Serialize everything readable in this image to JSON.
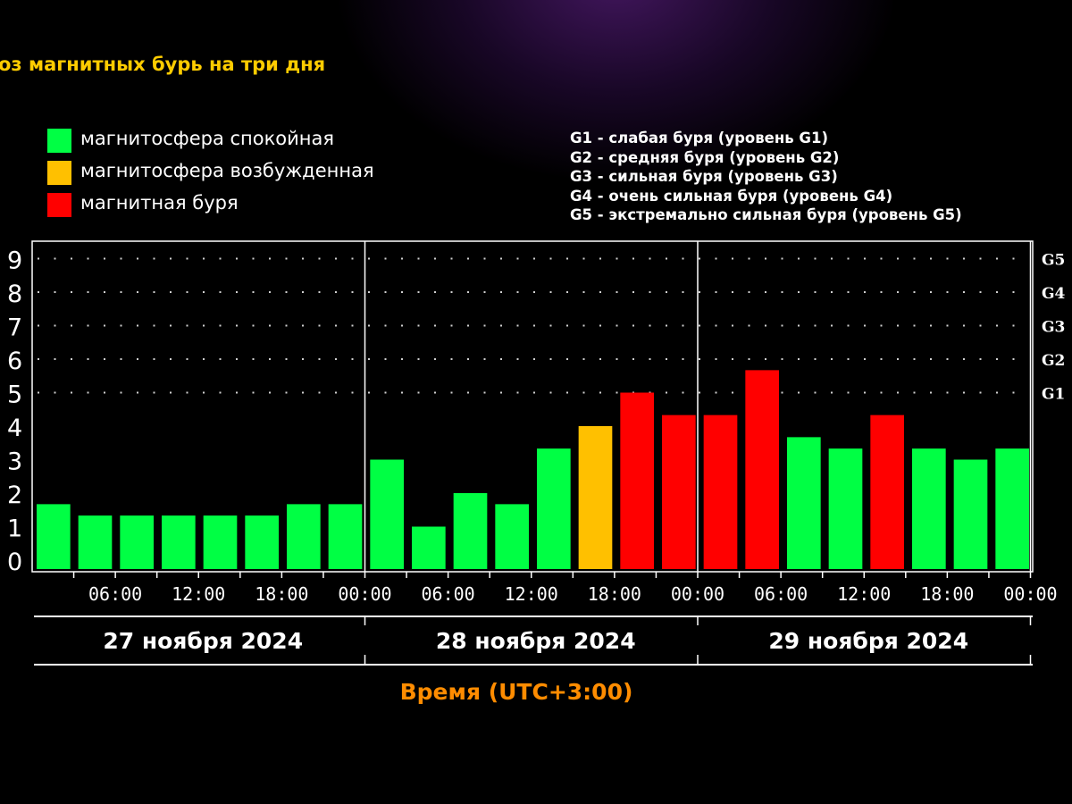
{
  "header": {
    "title": "оз магнитных бурь на три дня"
  },
  "legend": [
    {
      "label": "магнитосфера спокойная",
      "color": "#00ff44"
    },
    {
      "label": "магнитосфера возбужденная",
      "color": "#ffc000"
    },
    {
      "label": "магнитная буря",
      "color": "#ff0000"
    }
  ],
  "storm_scale": [
    "G1 - слабая буря (уровень G1)",
    "G2 - средняя буря (уровень G2)",
    "G3 - сильная буря (уровень G3)",
    "G4 - очень сильная буря (уровень G4)",
    "G5 - экстремально сильная буря (уровень G5)"
  ],
  "chart_data": {
    "type": "bar",
    "xlabel": "Время (UTC+3:00)",
    "ylim": [
      0,
      9
    ],
    "y_ticks": [
      "0",
      "1",
      "2",
      "3",
      "4",
      "5",
      "6",
      "7",
      "8",
      "9"
    ],
    "right_ticks": [
      {
        "label": "G1",
        "value": 5
      },
      {
        "label": "G2",
        "value": 6
      },
      {
        "label": "G3",
        "value": 7
      },
      {
        "label": "G4",
        "value": 8
      },
      {
        "label": "G5",
        "value": 9
      }
    ],
    "x_ticks": [
      "06:00",
      "12:00",
      "18:00",
      "00:00",
      "06:00",
      "12:00",
      "18:00",
      "00:00",
      "06:00",
      "12:00",
      "18:00",
      "00:00",
      "06:00",
      "12:00",
      "18:00",
      "00:00"
    ],
    "days": [
      "27 ноября 2024",
      "28 ноября 2024",
      "29 ноября 2024"
    ],
    "grid": true,
    "values": [
      1.67,
      1.33,
      1.33,
      1.33,
      1.33,
      1.33,
      1.67,
      1.67,
      3.0,
      1.0,
      2.0,
      1.67,
      3.33,
      4.0,
      5.0,
      4.33,
      4.33,
      5.67,
      3.67,
      3.33,
      4.33,
      3.33,
      3.0,
      3.33
    ],
    "levels": [
      "quiet",
      "quiet",
      "quiet",
      "quiet",
      "quiet",
      "quiet",
      "quiet",
      "quiet",
      "quiet",
      "quiet",
      "quiet",
      "quiet",
      "quiet",
      "active",
      "storm",
      "storm",
      "storm",
      "storm",
      "quiet",
      "quiet",
      "storm",
      "quiet",
      "quiet",
      "quiet"
    ],
    "level_colors": {
      "quiet": "#00ff44",
      "active": "#ffc000",
      "storm": "#ff0000"
    }
  }
}
